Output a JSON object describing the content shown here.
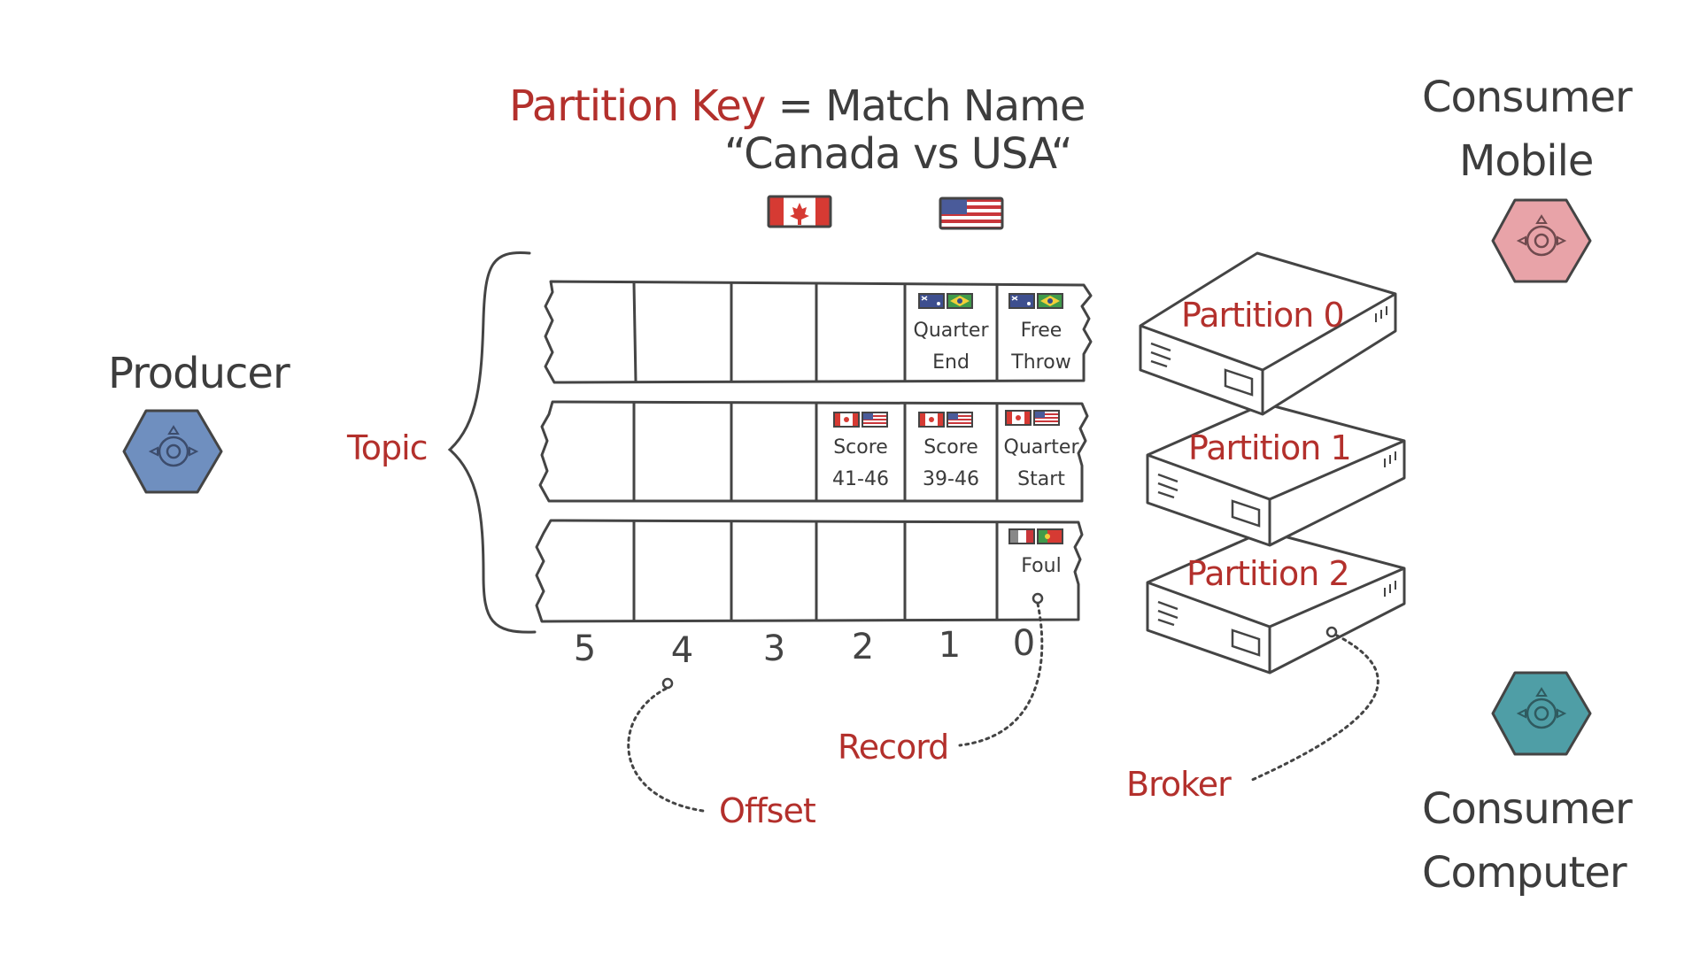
{
  "header": {
    "partition_key": "Partition Key",
    "equals": "=",
    "match_name": "Match Name",
    "match_value": "“Canada vs USA“"
  },
  "producer": {
    "label": "Producer",
    "icon": "hexagon-app-icon",
    "color": "#6f8fbf"
  },
  "topic": {
    "label": "Topic"
  },
  "partitions": [
    {
      "label": "Partition 0",
      "records": [
        {
          "offset_slot": 1,
          "line1": "Quarter",
          "line2": "End",
          "flags": [
            "australia",
            "brazil"
          ]
        },
        {
          "offset_slot": 0,
          "line1": "Free",
          "line2": "Throw",
          "flags": [
            "australia",
            "brazil"
          ]
        }
      ]
    },
    {
      "label": "Partition 1",
      "records": [
        {
          "offset_slot": 2,
          "line1": "Score",
          "line2": "41-46",
          "flags": [
            "canada",
            "usa"
          ]
        },
        {
          "offset_slot": 1,
          "line1": "Score",
          "line2": "39-46",
          "flags": [
            "canada",
            "usa"
          ]
        },
        {
          "offset_slot": 0,
          "line1": "Quarter",
          "line2": "Start",
          "flags": [
            "canada",
            "usa"
          ]
        }
      ]
    },
    {
      "label": "Partition 2",
      "records": [
        {
          "offset_slot": 0,
          "line1": "Foul",
          "line2": "",
          "flags": [
            "gray",
            "portugal"
          ]
        }
      ]
    }
  ],
  "offsets": [
    "5",
    "4",
    "3",
    "2",
    "1",
    "0"
  ],
  "annotations": {
    "record": "Record",
    "offset": "Offset",
    "broker": "Broker"
  },
  "consumers": [
    {
      "line1": "Consumer",
      "line2": "Mobile",
      "icon": "hexagon-app-icon",
      "color": "#e8a3a8"
    },
    {
      "line1": "Consumer",
      "line2": "Computer",
      "icon": "hexagon-app-icon",
      "color": "#4f9ea6"
    }
  ],
  "colors": {
    "accent_red": "#b3302c",
    "ink": "#3d3d3d"
  }
}
